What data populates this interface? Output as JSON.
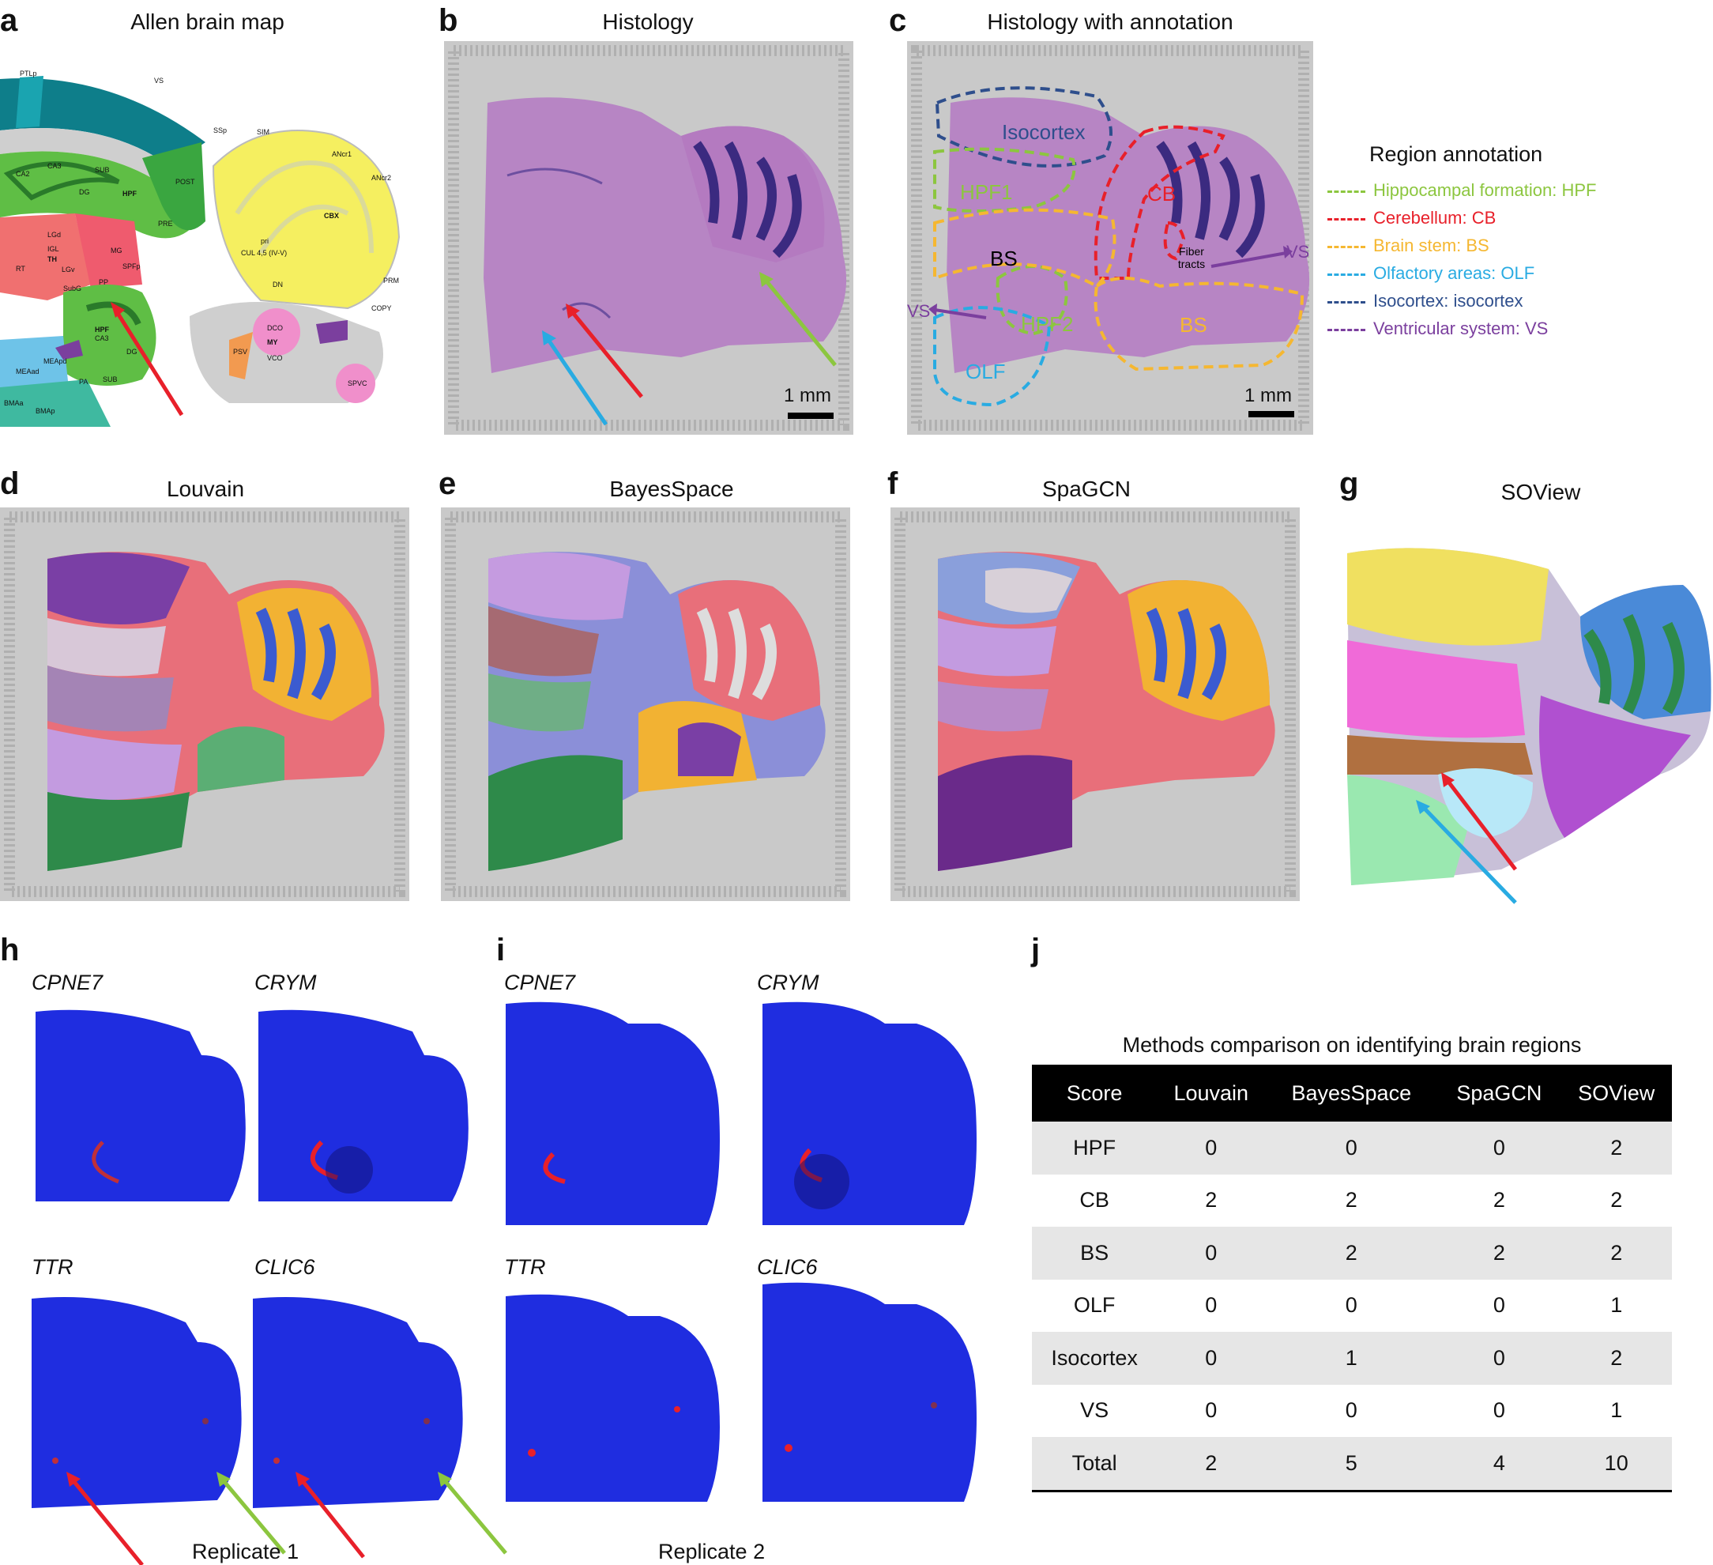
{
  "panels": {
    "a": {
      "letter": "a",
      "title": "Allen brain map"
    },
    "b": {
      "letter": "b",
      "title": "Histology",
      "scale": "1 mm"
    },
    "c": {
      "letter": "c",
      "title": "Histology with annotation",
      "scale": "1 mm",
      "regions": [
        "Isocortex",
        "HPF1",
        "HPF2",
        "CB",
        "BS",
        "BS",
        "OLF",
        "VS",
        "VS"
      ],
      "fiber": "Fiber tracts"
    },
    "d": {
      "letter": "d",
      "title": "Louvain"
    },
    "e": {
      "letter": "e",
      "title": "BayesSpace"
    },
    "f": {
      "letter": "f",
      "title": "SpaGCN"
    },
    "g": {
      "letter": "g",
      "title": "SOView"
    },
    "h": {
      "letter": "h",
      "genes": [
        "CPNE7",
        "CRYM",
        "TTR",
        "CLIC6"
      ],
      "replicate": "Replicate 1"
    },
    "i": {
      "letter": "i",
      "genes": [
        "CPNE7",
        "CRYM",
        "TTR",
        "CLIC6"
      ],
      "replicate": "Replicate 2"
    },
    "j": {
      "letter": "j"
    }
  },
  "atlas_labels": {
    "top": [
      "PTLp",
      "VS",
      "SSp",
      "SIM",
      "ANcr1",
      "ANcr2"
    ],
    "mid": [
      "CA3",
      "CA2",
      "SUB",
      "HPF",
      "POST",
      "DG",
      "PRE",
      "CBX",
      "CUL 4,5 (IV-V)",
      "pri"
    ],
    "low": [
      "LGd",
      "IGL",
      "TH",
      "LGv",
      "MG",
      "SPFp",
      "RT",
      "SubG",
      "PP",
      "DN",
      "PRM",
      "COPY"
    ],
    "bottom": [
      "HPF",
      "CA3",
      "DG",
      "SUB",
      "MEAad",
      "MEApd",
      "PA",
      "BMAa",
      "BMAp",
      "DCO",
      "MY",
      "VCO",
      "PSV",
      "SPVC"
    ]
  },
  "legend": {
    "title": "Region annotation",
    "items": [
      {
        "label": "Hippocampal formation: HPF",
        "color": "#8cc63f"
      },
      {
        "label": "Cerebellum: CB",
        "color": "#e8202a"
      },
      {
        "label": "Brain stem: BS",
        "color": "#f5b731"
      },
      {
        "label": "Olfactory areas: OLF",
        "color": "#29abe2"
      },
      {
        "label": "Isocortex: isocortex",
        "color": "#2e4e8c"
      },
      {
        "label": "Ventricular system: VS",
        "color": "#7b3f9e"
      }
    ]
  },
  "table": {
    "title": "Methods comparison on identifying brain regions",
    "headers": [
      "Score",
      "Louvain",
      "BayesSpace",
      "SpaGCN",
      "SOView"
    ],
    "rows": [
      [
        "HPF",
        "0",
        "0",
        "0",
        "2"
      ],
      [
        "CB",
        "2",
        "2",
        "2",
        "2"
      ],
      [
        "BS",
        "0",
        "2",
        "2",
        "2"
      ],
      [
        "OLF",
        "0",
        "0",
        "0",
        "1"
      ],
      [
        "Isocortex",
        "0",
        "1",
        "0",
        "2"
      ],
      [
        "VS",
        "0",
        "0",
        "0",
        "1"
      ],
      [
        "Total",
        "2",
        "5",
        "4",
        "10"
      ]
    ]
  },
  "colors": {
    "arrow_red": "#e8202a",
    "arrow_blue": "#29abe2",
    "arrow_green": "#8cc63f",
    "expr_blue": "#1f2de0",
    "tissue_purple": "#b785c4"
  }
}
